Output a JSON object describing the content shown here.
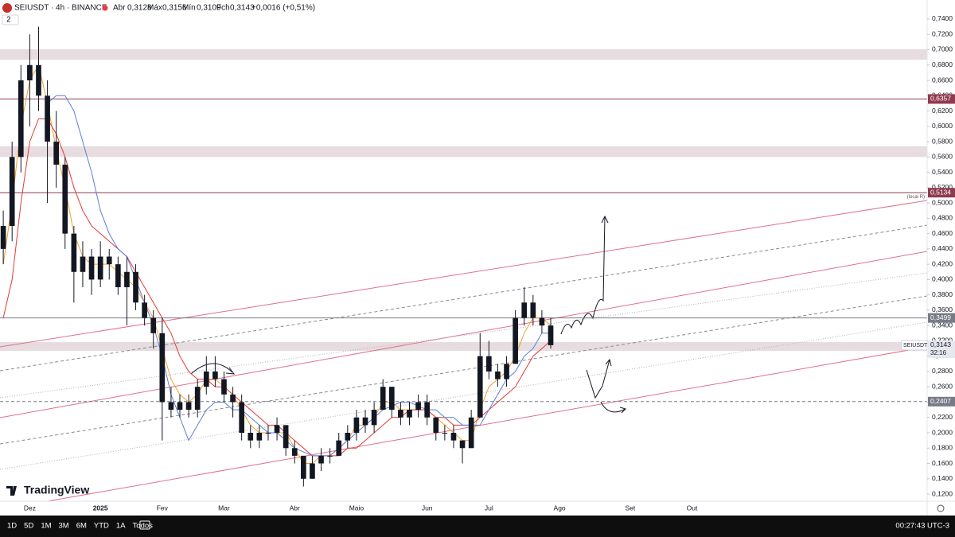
{
  "header": {
    "symbol": "SEIUSDT · 4h · BINANCE",
    "open_label": "Abr",
    "open": "0,3128",
    "high_label": "Máx",
    "high": "0,3156",
    "low_label": "Mín",
    "low": "0,3109",
    "close_label": "Fch",
    "close": "0,3143",
    "change": "+0,0016 (+0,51%)",
    "indicators": "2"
  },
  "toolbar": {
    "ranges": [
      "1D",
      "5D",
      "1M",
      "3M",
      "6M",
      "YTD",
      "1A",
      "Todos"
    ],
    "clock": "00:27:43 UTC-3"
  },
  "logo": "TradingView",
  "chart_data": {
    "type": "candlestick",
    "candle_color": "#131722",
    "categories": [
      null,
      null,
      null,
      "Dez",
      null,
      null,
      null,
      null,
      null,
      null,
      null,
      "2025",
      null,
      null,
      null,
      null,
      null,
      null,
      "Fev",
      null,
      null,
      null,
      null,
      null,
      null,
      "Mar",
      null,
      null,
      null,
      null,
      null,
      null,
      null,
      "Abr",
      null,
      null,
      null,
      null,
      null,
      null,
      "Maio",
      null,
      null,
      null,
      null,
      null,
      null,
      null,
      "Jun",
      null,
      null,
      null,
      null,
      null,
      null,
      "Jul",
      null,
      null,
      null,
      null,
      null,
      null,
      null,
      "Ago",
      null,
      null,
      null,
      null,
      null,
      null,
      null,
      "Set",
      null,
      null,
      null,
      null,
      null,
      null,
      "Out",
      null,
      null,
      null,
      null,
      null,
      null,
      null,
      null,
      null,
      null,
      null,
      null,
      null,
      null,
      null,
      null,
      null,
      null,
      null,
      null,
      null,
      null,
      null,
      null,
      null,
      null
    ],
    "open": [
      0.44,
      0.47,
      0.56,
      0.66,
      0.68,
      0.64,
      0.58,
      0.55,
      0.46,
      0.41,
      0.43,
      0.4,
      0.43,
      0.42,
      0.39,
      0.41,
      0.37,
      0.35,
      0.33,
      0.24,
      0.23,
      0.24,
      0.23,
      0.26,
      0.28,
      0.27,
      0.25,
      0.24,
      0.2,
      0.19,
      0.2,
      0.2,
      0.21,
      0.18,
      0.17,
      0.14,
      0.16,
      0.17,
      0.17,
      0.19,
      0.2,
      0.22,
      0.21,
      0.23,
      0.26,
      0.23,
      0.22,
      0.23,
      0.24,
      0.22,
      0.2,
      0.2,
      0.19,
      0.18,
      0.22,
      0.3,
      0.28,
      0.27,
      0.29,
      0.35,
      0.37,
      0.35,
      0.34,
      null,
      null,
      null,
      null,
      null,
      null,
      null,
      null,
      null,
      null,
      null,
      null,
      null,
      null,
      null,
      null,
      null,
      null,
      null,
      null,
      null,
      null,
      null,
      null,
      null,
      null,
      null,
      null,
      null,
      null,
      null,
      null,
      null,
      null,
      null,
      null,
      null,
      null,
      null,
      null,
      null,
      null
    ],
    "high": [
      0.49,
      0.58,
      0.68,
      0.72,
      0.73,
      0.66,
      0.62,
      0.56,
      0.47,
      0.45,
      0.44,
      0.45,
      0.44,
      0.43,
      0.43,
      0.42,
      0.38,
      0.36,
      0.35,
      0.26,
      0.25,
      0.25,
      0.27,
      0.3,
      0.3,
      0.28,
      0.26,
      0.25,
      0.21,
      0.21,
      0.21,
      0.22,
      0.21,
      0.19,
      0.17,
      0.17,
      0.18,
      0.18,
      0.2,
      0.21,
      0.23,
      0.23,
      0.24,
      0.27,
      0.26,
      0.24,
      0.24,
      0.25,
      0.25,
      0.22,
      0.21,
      0.21,
      0.19,
      0.23,
      0.33,
      0.32,
      0.29,
      0.3,
      0.36,
      0.39,
      0.38,
      0.36,
      0.35,
      null,
      null,
      null,
      null,
      null,
      null,
      null,
      null,
      null,
      null,
      null,
      null,
      null,
      null,
      null,
      null,
      null,
      null,
      null,
      null,
      null,
      null,
      null,
      null,
      null,
      null,
      null,
      null,
      null,
      null,
      null,
      null,
      null,
      null,
      null,
      null,
      null,
      null,
      null,
      null,
      null,
      null
    ],
    "low": [
      0.42,
      0.45,
      0.54,
      0.6,
      0.62,
      0.5,
      0.52,
      0.44,
      0.37,
      0.39,
      0.38,
      0.39,
      0.4,
      0.38,
      0.34,
      0.36,
      0.34,
      0.31,
      0.19,
      0.22,
      0.22,
      0.22,
      0.22,
      0.25,
      0.26,
      0.24,
      0.22,
      0.19,
      0.18,
      0.18,
      0.19,
      0.19,
      0.17,
      0.16,
      0.13,
      0.14,
      0.15,
      0.16,
      0.17,
      0.18,
      0.19,
      0.2,
      0.2,
      0.23,
      0.22,
      0.21,
      0.21,
      0.22,
      0.21,
      0.19,
      0.19,
      0.18,
      0.16,
      0.18,
      0.22,
      0.27,
      0.26,
      0.26,
      0.29,
      0.34,
      0.34,
      0.33,
      0.31,
      null,
      null,
      null,
      null,
      null,
      null,
      null,
      null,
      null,
      null,
      null,
      null,
      null,
      null,
      null,
      null,
      null,
      null,
      null,
      null,
      null,
      null,
      null,
      null,
      null,
      null,
      null,
      null,
      null,
      null,
      null,
      null,
      null,
      null,
      null,
      null,
      null,
      null,
      null,
      null,
      null,
      null
    ],
    "close": [
      0.47,
      0.56,
      0.66,
      0.68,
      0.64,
      0.58,
      0.55,
      0.46,
      0.41,
      0.43,
      0.4,
      0.43,
      0.42,
      0.39,
      0.41,
      0.37,
      0.35,
      0.33,
      0.24,
      0.23,
      0.24,
      0.23,
      0.26,
      0.28,
      0.27,
      0.25,
      0.24,
      0.2,
      0.19,
      0.2,
      0.2,
      0.21,
      0.18,
      0.17,
      0.14,
      0.16,
      0.17,
      0.17,
      0.19,
      0.2,
      0.22,
      0.21,
      0.23,
      0.26,
      0.23,
      0.22,
      0.23,
      0.24,
      0.22,
      0.2,
      0.2,
      0.19,
      0.18,
      0.22,
      0.3,
      0.28,
      0.27,
      0.29,
      0.35,
      0.37,
      0.35,
      0.34,
      0.3143,
      null,
      null,
      null,
      null,
      null,
      null,
      null,
      null,
      null,
      null,
      null,
      null,
      null,
      null,
      null,
      null,
      null,
      null,
      null,
      null,
      null,
      null,
      null,
      null,
      null,
      null,
      null,
      null,
      null,
      null,
      null,
      null,
      null,
      null,
      null,
      null,
      null,
      null,
      null,
      null,
      null,
      null
    ],
    "series": [
      {
        "color": "#f0a030",
        "values": [
          0.42,
          0.5,
          0.6,
          0.66,
          0.68,
          0.63,
          0.57,
          0.52,
          0.46,
          0.43,
          0.42,
          0.42,
          0.42,
          0.41,
          0.4,
          0.39,
          0.37,
          0.35,
          0.31,
          0.27,
          0.25,
          0.24,
          0.25,
          0.27,
          0.27,
          0.26,
          0.25,
          0.23,
          0.21,
          0.2,
          0.2,
          0.2,
          0.2,
          0.18,
          0.16,
          0.16,
          0.17,
          0.17,
          0.18,
          0.19,
          0.21,
          0.21,
          0.22,
          0.24,
          0.24,
          0.23,
          0.23,
          0.23,
          0.23,
          0.22,
          0.21,
          0.2,
          0.19,
          0.19,
          0.23,
          0.26,
          0.27,
          0.28,
          0.3,
          0.33,
          0.35,
          0.35,
          0.34,
          null,
          null,
          null,
          null,
          null,
          null,
          null,
          null,
          null,
          null,
          null,
          null,
          null,
          null,
          null,
          null,
          null,
          null,
          null,
          null,
          null,
          null,
          null,
          null,
          null,
          null,
          null,
          null,
          null,
          null,
          null,
          null,
          null,
          null,
          null,
          null,
          null,
          null,
          null,
          null,
          null,
          null
        ]
      },
      {
        "color": "#e53935",
        "values": [
          0.35,
          0.4,
          0.5,
          0.58,
          0.61,
          0.61,
          0.59,
          0.56,
          0.52,
          0.49,
          0.47,
          0.46,
          0.45,
          0.44,
          0.43,
          0.41,
          0.39,
          0.37,
          0.35,
          0.33,
          0.3,
          0.28,
          0.27,
          0.27,
          0.26,
          0.26,
          0.25,
          0.24,
          0.23,
          0.22,
          0.21,
          0.21,
          0.2,
          0.19,
          0.18,
          0.17,
          0.17,
          0.17,
          0.17,
          0.18,
          0.18,
          0.19,
          0.2,
          0.21,
          0.22,
          0.22,
          0.23,
          0.23,
          0.23,
          0.22,
          0.22,
          0.21,
          0.21,
          0.21,
          0.22,
          0.23,
          0.24,
          0.25,
          0.26,
          0.28,
          0.3,
          0.31,
          0.32,
          null,
          null,
          null,
          null,
          null,
          null,
          null,
          null,
          null,
          null,
          null,
          null,
          null,
          null,
          null,
          null,
          null,
          null,
          null,
          null,
          null,
          null,
          null,
          null,
          null,
          null,
          null,
          null,
          null,
          null,
          null,
          null,
          null,
          null,
          null,
          null,
          null,
          null,
          null,
          null,
          null,
          null
        ]
      },
      {
        "color": "#5b7fdb",
        "values": [
          null,
          null,
          null,
          null,
          null,
          0.63,
          0.64,
          0.64,
          0.62,
          0.58,
          0.54,
          0.49,
          0.46,
          0.44,
          0.43,
          0.4,
          0.37,
          0.34,
          0.3,
          0.25,
          0.22,
          0.19,
          0.21,
          0.23,
          0.24,
          0.24,
          0.23,
          0.23,
          0.22,
          0.21,
          0.2,
          0.2,
          0.19,
          0.18,
          0.175,
          0.17,
          0.17,
          0.17,
          0.18,
          0.19,
          0.2,
          0.21,
          0.22,
          0.23,
          0.235,
          0.24,
          0.24,
          0.235,
          0.23,
          0.23,
          0.22,
          0.22,
          0.21,
          0.21,
          0.21,
          0.23,
          0.25,
          0.27,
          0.28,
          0.3,
          0.31,
          0.33,
          0.33,
          null,
          null,
          null,
          null,
          null,
          null,
          null,
          null,
          null,
          null,
          null,
          null,
          null,
          null,
          null,
          null,
          null,
          null,
          null,
          null,
          null,
          null,
          null,
          null,
          null,
          null,
          null,
          null,
          null,
          null,
          null,
          null,
          null,
          null,
          null,
          null,
          null,
          null,
          null,
          null,
          null,
          null
        ]
      }
    ],
    "ylim": [
      0.1107,
      0.7649
    ],
    "yticks": [
      {
        "value": 0.74,
        "label": "0,7400"
      },
      {
        "value": 0.72,
        "label": "0,7200"
      },
      {
        "value": 0.7,
        "label": "0,7000"
      },
      {
        "value": 0.68,
        "label": "0,6800"
      },
      {
        "value": 0.66,
        "label": "0,6600"
      },
      {
        "value": 0.64,
        "label": "0,6400"
      },
      {
        "value": 0.62,
        "label": "0,6200"
      },
      {
        "value": 0.6,
        "label": "0,6000"
      },
      {
        "value": 0.58,
        "label": "0,5800"
      },
      {
        "value": 0.56,
        "label": "0,5600"
      },
      {
        "value": 0.54,
        "label": "0,5400"
      },
      {
        "value": 0.52,
        "label": "0,5200"
      },
      {
        "value": 0.5,
        "label": "0,5000"
      },
      {
        "value": 0.48,
        "label": "0,4800"
      },
      {
        "value": 0.46,
        "label": "0,4600"
      },
      {
        "value": 0.44,
        "label": "0,4400"
      },
      {
        "value": 0.42,
        "label": "0,4200"
      },
      {
        "value": 0.4,
        "label": "0,4000"
      },
      {
        "value": 0.38,
        "label": "0,3800"
      },
      {
        "value": 0.36,
        "label": "0,3600"
      },
      {
        "value": 0.34,
        "label": "0,3400"
      },
      {
        "value": 0.32,
        "label": "0,3200"
      },
      {
        "value": 0.3,
        "label": "0,3000"
      },
      {
        "value": 0.28,
        "label": "0,2800"
      },
      {
        "value": 0.26,
        "label": "0,2600"
      },
      {
        "value": 0.24,
        "label": "0,2400"
      },
      {
        "value": 0.22,
        "label": "0,2200"
      },
      {
        "value": 0.2,
        "label": "0,2000"
      },
      {
        "value": 0.18,
        "label": "0,1800"
      },
      {
        "value": 0.16,
        "label": "0,1600"
      },
      {
        "value": 0.14,
        "label": "0,1400"
      },
      {
        "value": 0.12,
        "label": "0,1200"
      }
    ],
    "zones": [
      [
        0.687,
        0.7005
      ],
      [
        0.56,
        0.574
      ],
      [
        0.3069,
        0.3184
      ]
    ],
    "zone_color": "#e7dcdf",
    "levels": [
      {
        "value": 0.6357,
        "label": "0,6357",
        "color": "#8e3b4f"
      },
      {
        "value": 0.5134,
        "label": "0,5134",
        "color": "#8e3b4f",
        "note": "(local R)"
      },
      {
        "value": 0.3499,
        "label": "0,3499",
        "color": "#787b86"
      },
      {
        "value": 0.2407,
        "label": "0,2407",
        "color": "#787b86",
        "dashed": true
      }
    ],
    "last_price": {
      "symbol": "SEIUSDT",
      "value": 0.3143,
      "label": "0,3143",
      "countdown": "32:16"
    }
  }
}
